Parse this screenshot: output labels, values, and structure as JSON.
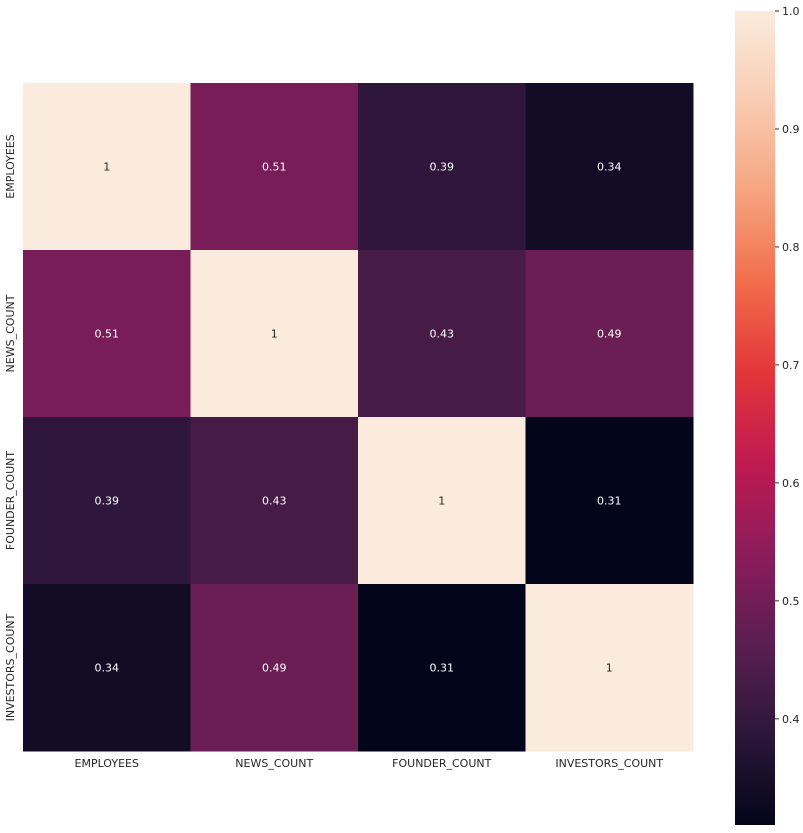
{
  "chart_data": {
    "type": "heatmap",
    "title": "",
    "xlabel": "",
    "ylabel": "",
    "x_categories": [
      "EMPLOYEES",
      "NEWS_COUNT",
      "FOUNDER_COUNT",
      "INVESTORS_COUNT"
    ],
    "y_categories": [
      "EMPLOYEES",
      "NEWS_COUNT",
      "FOUNDER_COUNT",
      "INVESTORS_COUNT"
    ],
    "values": [
      [
        1,
        0.51,
        0.39,
        0.34
      ],
      [
        0.51,
        1,
        0.43,
        0.49
      ],
      [
        0.39,
        0.43,
        1,
        0.31
      ],
      [
        0.34,
        0.49,
        0.31,
        1
      ]
    ],
    "annotations": [
      [
        "1",
        "0.51",
        "0.39",
        "0.34"
      ],
      [
        "0.51",
        "1",
        "0.43",
        "0.49"
      ],
      [
        "0.39",
        "0.43",
        "1",
        "0.31"
      ],
      [
        "0.34",
        "0.49",
        "0.31",
        "1"
      ]
    ],
    "colorbar": {
      "range": [
        0.31,
        1.0
      ],
      "ticks": [
        0.4,
        0.5,
        0.6,
        0.7,
        0.8,
        0.9,
        1.0
      ],
      "tick_labels": [
        "0.4",
        "0.5",
        "0.6",
        "0.7",
        "0.8",
        "0.9",
        "1.0"
      ],
      "colormap": "rocket",
      "colormap_stops": [
        "#03051a",
        "#2c1739",
        "#5a1f51",
        "#8c1c5b",
        "#bf1a51",
        "#e3353a",
        "#f26d4b",
        "#f6a47f",
        "#f8ccb2",
        "#faebdd"
      ]
    }
  }
}
